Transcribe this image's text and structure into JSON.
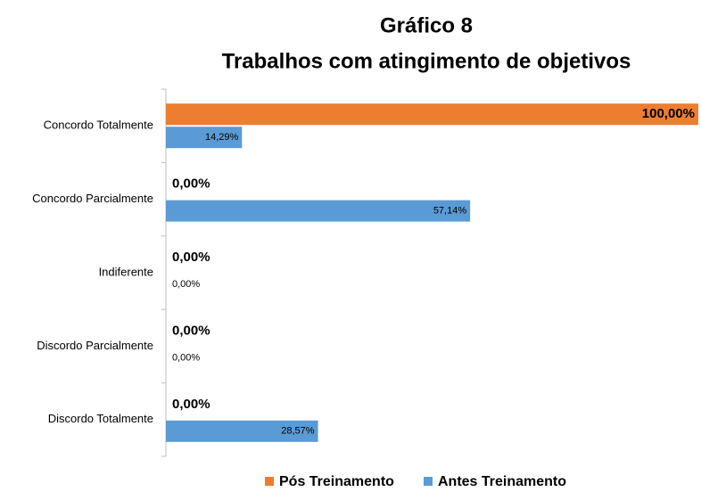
{
  "chart_data": {
    "type": "bar",
    "orientation": "horizontal",
    "title": "Gráfico 8",
    "subtitle": "Trabalhos com atingimento de objetivos",
    "categories": [
      "Concordo Totalmente",
      "Concordo Parcialmente",
      "Indiferente",
      "Discordo Parcialmente",
      "Discordo Totalmente"
    ],
    "series": [
      {
        "name": "Pós Treinamento",
        "color": "#ed7d31",
        "values": [
          100,
          0,
          0,
          0,
          0
        ],
        "value_labels": [
          "100,00%",
          "0,00%",
          "0,00%",
          "0,00%",
          "0,00%"
        ]
      },
      {
        "name": "Antes Treinamento",
        "color": "#5b9bd5",
        "values": [
          14.29,
          57.14,
          0,
          0,
          28.57
        ],
        "value_labels": [
          "14,29%",
          "57,14%",
          "0,00%",
          "0,00%",
          "28,57%"
        ]
      }
    ],
    "xlim": [
      0,
      100
    ],
    "legend": "bottom"
  }
}
